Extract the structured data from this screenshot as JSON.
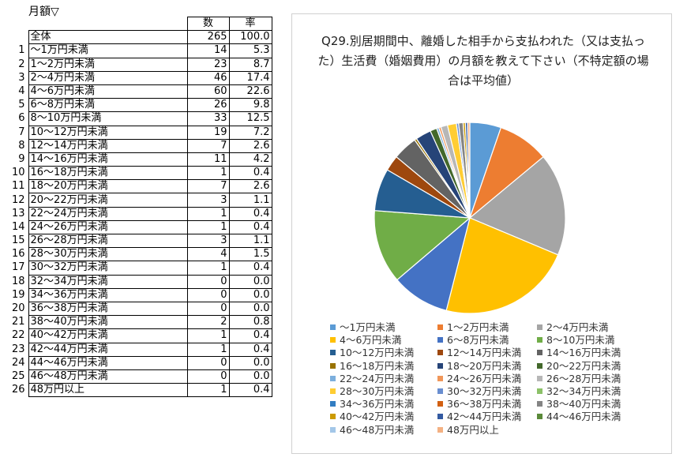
{
  "sheet": {
    "title": "月額▽"
  },
  "table": {
    "headers": {
      "count": "数",
      "rate": "率"
    },
    "total": {
      "label": "全体",
      "count": "265",
      "rate": "100.0"
    },
    "rows": [
      {
        "no": "1",
        "label": "～1万円未満",
        "count": "14",
        "rate": "5.3"
      },
      {
        "no": "2",
        "label": "1～2万円未満",
        "count": "23",
        "rate": "8.7"
      },
      {
        "no": "3",
        "label": "2～4万円未満",
        "count": "46",
        "rate": "17.4"
      },
      {
        "no": "4",
        "label": "4～6万円未満",
        "count": "60",
        "rate": "22.6"
      },
      {
        "no": "5",
        "label": "6～8万円未満",
        "count": "26",
        "rate": "9.8"
      },
      {
        "no": "6",
        "label": "8～10万円未満",
        "count": "33",
        "rate": "12.5"
      },
      {
        "no": "7",
        "label": "10～12万円未満",
        "count": "19",
        "rate": "7.2"
      },
      {
        "no": "8",
        "label": "12～14万円未満",
        "count": "7",
        "rate": "2.6"
      },
      {
        "no": "9",
        "label": "14～16万円未満",
        "count": "11",
        "rate": "4.2"
      },
      {
        "no": "10",
        "label": "16～18万円未満",
        "count": "1",
        "rate": "0.4"
      },
      {
        "no": "11",
        "label": "18～20万円未満",
        "count": "7",
        "rate": "2.6"
      },
      {
        "no": "12",
        "label": "20～22万円未満",
        "count": "3",
        "rate": "1.1"
      },
      {
        "no": "13",
        "label": "22～24万円未満",
        "count": "1",
        "rate": "0.4"
      },
      {
        "no": "14",
        "label": "24～26万円未満",
        "count": "1",
        "rate": "0.4"
      },
      {
        "no": "15",
        "label": "26～28万円未満",
        "count": "3",
        "rate": "1.1"
      },
      {
        "no": "16",
        "label": "28～30万円未満",
        "count": "4",
        "rate": "1.5"
      },
      {
        "no": "17",
        "label": "30～32万円未満",
        "count": "1",
        "rate": "0.4"
      },
      {
        "no": "18",
        "label": "32～34万円未満",
        "count": "0",
        "rate": "0.0"
      },
      {
        "no": "19",
        "label": "34～36万円未満",
        "count": "0",
        "rate": "0.0"
      },
      {
        "no": "20",
        "label": "36～38万円未満",
        "count": "0",
        "rate": "0.0"
      },
      {
        "no": "21",
        "label": "38～40万円未満",
        "count": "2",
        "rate": "0.8"
      },
      {
        "no": "22",
        "label": "40～42万円未満",
        "count": "1",
        "rate": "0.4"
      },
      {
        "no": "23",
        "label": "42～44万円未満",
        "count": "1",
        "rate": "0.4"
      },
      {
        "no": "24",
        "label": "44～46万円未満",
        "count": "0",
        "rate": "0.0"
      },
      {
        "no": "25",
        "label": "46～48万円未満",
        "count": "0",
        "rate": "0.0"
      },
      {
        "no": "26",
        "label": "48万円以上",
        "count": "1",
        "rate": "0.4"
      }
    ]
  },
  "chart_data": {
    "type": "pie",
    "title": "Q29.別居期間中、離婚した相手から支払われた（又は支払った）生活費（婚姻費用）の月額を教えて下さい（不特定額の場合は平均値）",
    "legend_position": "bottom",
    "categories": [
      "～1万円未満",
      "1～2万円未満",
      "2～4万円未満",
      "4～6万円未満",
      "6～8万円未満",
      "8～10万円未満",
      "10～12万円未満",
      "12～14万円未満",
      "14～16万円未満",
      "16～18万円未満",
      "18～20万円未満",
      "20～22万円未満",
      "22～24万円未満",
      "24～26万円未満",
      "26～28万円未満",
      "28～30万円未満",
      "30～32万円未満",
      "32～34万円未満",
      "34～36万円未満",
      "36～38万円未満",
      "38～40万円未満",
      "40～42万円未満",
      "42～44万円未満",
      "44～46万円未満",
      "46～48万円未満",
      "48万円以上"
    ],
    "values": [
      14,
      23,
      46,
      60,
      26,
      33,
      19,
      7,
      11,
      1,
      7,
      3,
      1,
      1,
      3,
      4,
      1,
      0,
      0,
      0,
      2,
      1,
      1,
      0,
      0,
      1
    ],
    "colors": [
      "#5B9BD5",
      "#ED7D31",
      "#A5A5A5",
      "#FFC000",
      "#4472C4",
      "#70AD47",
      "#255E91",
      "#9E480E",
      "#636363",
      "#997300",
      "#264478",
      "#43682B",
      "#7CAFDD",
      "#F1975A",
      "#B7B7B7",
      "#FFCD33",
      "#698ED0",
      "#8CC168",
      "#327DC2",
      "#D26012",
      "#848484",
      "#CC9A00",
      "#335AA1",
      "#5A8A39",
      "#A3C7E8",
      "#F4B183"
    ]
  }
}
